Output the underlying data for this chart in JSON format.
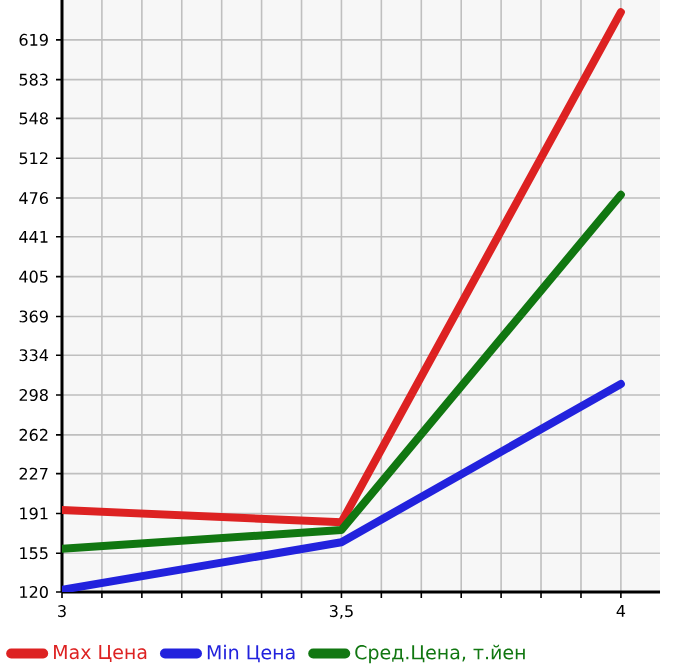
{
  "chart_data": {
    "type": "line",
    "x": [
      3,
      3.5,
      4
    ],
    "xlim": [
      3,
      4.07
    ],
    "xticks": [
      3,
      {
        "value": 3.0714,
        "label": null
      },
      {
        "value": 3.1429,
        "label": null
      },
      {
        "value": 3.2143,
        "label": null
      },
      {
        "value": 3.2857,
        "label": null
      },
      {
        "value": 3.3571,
        "label": null
      },
      {
        "value": 3.4286,
        "label": null
      },
      {
        "value": 3.5,
        "label": "3,5"
      },
      {
        "value": 3.5714,
        "label": null
      },
      {
        "value": 3.6429,
        "label": null
      },
      {
        "value": 3.7143,
        "label": null
      },
      {
        "value": 3.7857,
        "label": null
      },
      {
        "value": 3.8571,
        "label": null
      },
      {
        "value": 3.9286,
        "label": null
      },
      4
    ],
    "ylim": [
      120,
      655
    ],
    "yticks": [
      120,
      155,
      191,
      227,
      262,
      298,
      334,
      369,
      405,
      441,
      476,
      512,
      548,
      583,
      619
    ],
    "series": [
      {
        "name": "Max Цена",
        "color": "#dd2222",
        "values": [
          194,
          183,
          644
        ]
      },
      {
        "name": "Min Цена",
        "color": "#2222dd",
        "values": [
          122,
          165,
          308
        ]
      },
      {
        "name": "Сред.Цена, т.йен",
        "color": "#117711",
        "values": [
          159,
          176,
          479
        ]
      }
    ],
    "grid": true,
    "legend": "bottom",
    "marker": "none",
    "line_style": "solid"
  }
}
